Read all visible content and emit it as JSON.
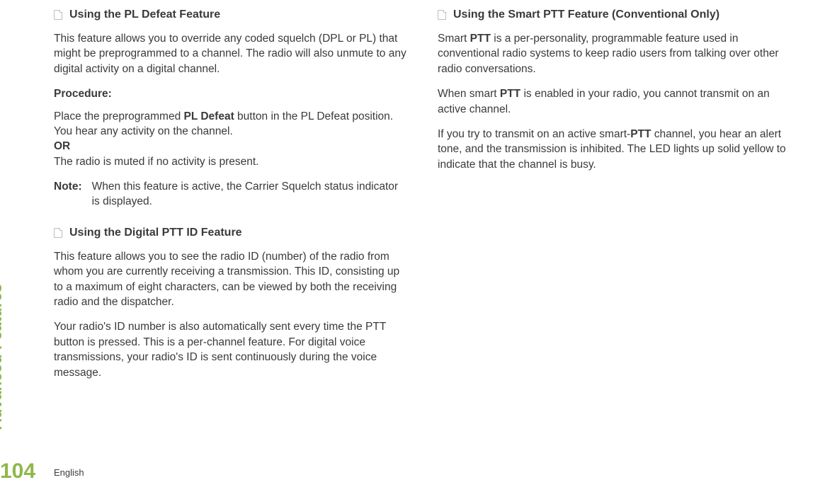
{
  "colors": {
    "accent": "#8fb84a",
    "text": "#3a3a3a",
    "iconBorder": "#bdbdbd",
    "background": "#ffffff"
  },
  "sidebar": {
    "label": "Advanced Features",
    "pageNumber": "104",
    "language": "English"
  },
  "left": {
    "section1": {
      "title": "Using the PL Defeat Feature",
      "p1": "This feature allows you to override any coded squelch (DPL or PL) that might be preprogrammed to a channel. The radio will also unmute to any digital activity on a digital channel.",
      "procedureLabel": "Procedure:",
      "p2a": "Place the preprogrammed ",
      "p2bold": "PL Defeat",
      "p2b": " button in the PL Defeat position. You hear any activity on the channel.",
      "or": "OR",
      "p3": "The radio is muted if no activity is present.",
      "noteLabel": "Note:",
      "noteText": "When this feature is active, the Carrier Squelch status indicator is displayed."
    },
    "section2": {
      "title": "Using the Digital PTT ID Feature",
      "p1": "This feature allows you to see the radio ID (number) of the radio from whom you are currently receiving a transmission. This ID, consisting up to a maximum of eight characters, can be viewed by both the receiving radio and the dispatcher.",
      "p2": "Your radio's ID number is also automatically sent every time the PTT button is pressed. This is a per-channel feature. For digital voice transmissions, your radio's ID is sent continuously during the voice message."
    }
  },
  "right": {
    "section1": {
      "title": "Using the Smart PTT Feature (Conventional Only)",
      "p1a": "Smart ",
      "p1bold1": "PTT",
      "p1b": " is a per-personality, programmable feature used in conventional radio systems to keep radio users from talking over other radio conversations.",
      "p2a": "When smart ",
      "p2bold": "PTT",
      "p2b": " is enabled in your radio, you cannot transmit on an active channel.",
      "p3a": "If you try to transmit on an active smart-",
      "p3bold": "PTT",
      "p3b": " channel, you hear an alert tone, and the transmission is inhibited. The LED lights up solid yellow to indicate that the channel is busy."
    }
  }
}
